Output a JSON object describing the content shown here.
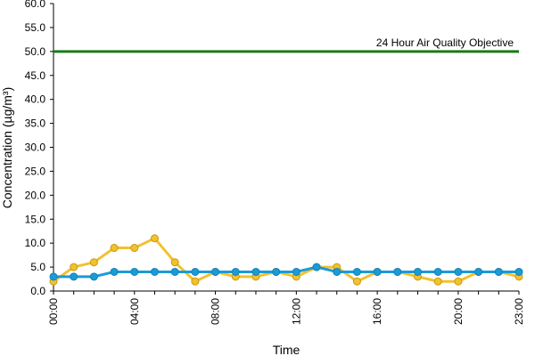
{
  "chart_data": {
    "type": "line",
    "xlabel": "Time",
    "ylabel": "Concentration (µg/m³)",
    "ylim": [
      0,
      60
    ],
    "yticks": [
      "0.0",
      "5.0",
      "10.0",
      "15.0",
      "20.0",
      "25.0",
      "30.0",
      "35.0",
      "40.0",
      "45.0",
      "50.0",
      "55.0",
      "60.0"
    ],
    "x": [
      "00:00",
      "01:00",
      "02:00",
      "03:00",
      "04:00",
      "05:00",
      "06:00",
      "07:00",
      "08:00",
      "09:00",
      "10:00",
      "11:00",
      "12:00",
      "13:00",
      "14:00",
      "15:00",
      "16:00",
      "17:00",
      "18:00",
      "19:00",
      "20:00",
      "21:00",
      "22:00",
      "23:00"
    ],
    "xtick_labels": [
      "00:00",
      "04:00",
      "08:00",
      "12:00",
      "16:00",
      "20:00",
      "23:00"
    ],
    "series": [
      {
        "color": "#f2c12e",
        "values": [
          2,
          5,
          6,
          9,
          9,
          11,
          6,
          2,
          4,
          3,
          3,
          4,
          3,
          5,
          5,
          2,
          4,
          4,
          3,
          2,
          2,
          4,
          4,
          3
        ]
      },
      {
        "color": "#1a9bd7",
        "values": [
          3,
          3,
          3,
          4,
          4,
          4,
          4,
          4,
          4,
          4,
          4,
          4,
          4,
          5,
          4,
          4,
          4,
          4,
          4,
          4,
          4,
          4,
          4,
          4
        ]
      }
    ],
    "reference_line": {
      "value": 50,
      "label": "24 Hour Air Quality Objective",
      "color": "#1a7a1a"
    },
    "grid": false,
    "legend": "none"
  }
}
